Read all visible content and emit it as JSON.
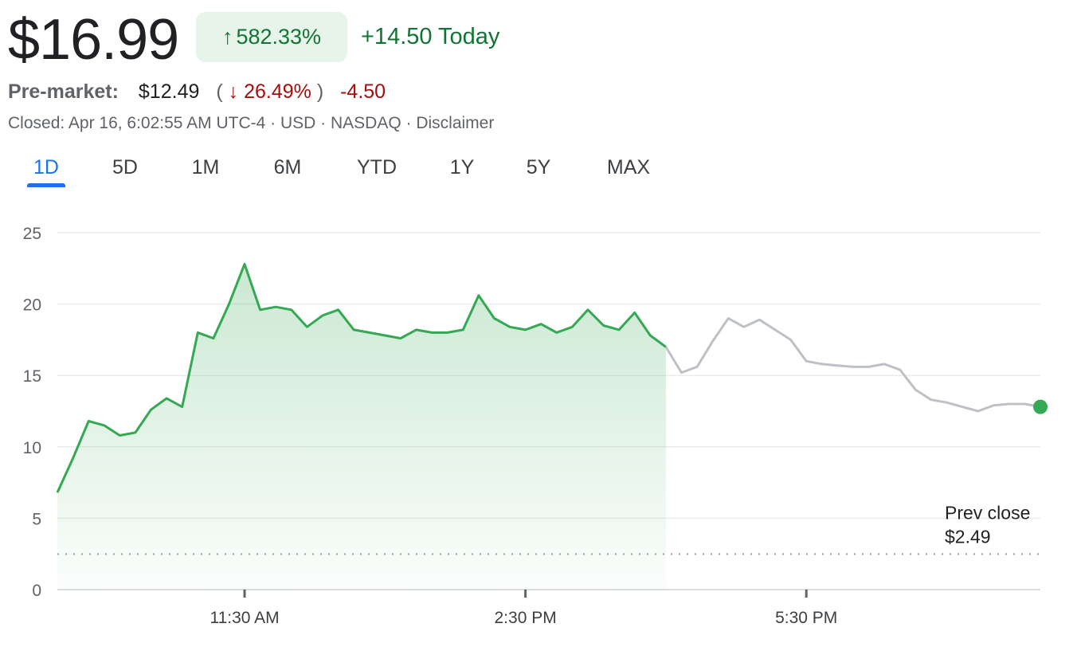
{
  "quote": {
    "price": "$16.99",
    "change_arrow": "↑",
    "change_percent": "582.33%",
    "change_today": "+14.50 Today"
  },
  "premarket": {
    "label": "Pre-market:",
    "price": "$12.49",
    "paren_open": "(",
    "arrow": "↓",
    "percent": "26.49%",
    "paren_close": ")",
    "change": "-4.50"
  },
  "meta": "Closed: Apr 16, 6:02:55 AM UTC-4 · USD · NASDAQ · Disclaimer",
  "tabs": [
    "1D",
    "5D",
    "1M",
    "6M",
    "YTD",
    "1Y",
    "5Y",
    "MAX"
  ],
  "active_tab": "1D",
  "colors": {
    "up": "#137333",
    "line_green": "#34a853",
    "line_gray": "#bdc1c6",
    "down": "#a50e0e",
    "accent": "#1a73e8"
  },
  "chart_data": {
    "type": "line",
    "ylim": [
      0,
      25
    ],
    "yticks": [
      0,
      5,
      10,
      15,
      20,
      25
    ],
    "xlim": [
      "09:30",
      "20:00"
    ],
    "xticks": [
      "11:30 AM",
      "2:30 PM",
      "5:30 PM"
    ],
    "grid": true,
    "prev_close": {
      "label": "Prev close",
      "value_label": "$2.49",
      "value": 2.49
    },
    "series": [
      {
        "session": "regular",
        "x": [
          "09:30",
          "09:40",
          "09:50",
          "10:00",
          "10:10",
          "10:20",
          "10:30",
          "10:40",
          "10:50",
          "11:00",
          "11:10",
          "11:20",
          "11:30",
          "11:40",
          "11:50",
          "12:00",
          "12:10",
          "12:20",
          "12:30",
          "12:40",
          "12:50",
          "13:00",
          "13:10",
          "13:20",
          "13:30",
          "13:40",
          "13:50",
          "14:00",
          "14:10",
          "14:20",
          "14:30",
          "14:40",
          "14:50",
          "15:00",
          "15:10",
          "15:20",
          "15:30",
          "15:40",
          "15:50",
          "16:00"
        ],
        "y": [
          6.8,
          9.2,
          11.8,
          11.5,
          10.8,
          11.0,
          12.6,
          13.4,
          12.8,
          18.0,
          17.6,
          20.0,
          22.8,
          19.6,
          19.8,
          19.6,
          18.4,
          19.2,
          19.6,
          18.2,
          18.0,
          17.8,
          17.6,
          18.2,
          18.0,
          18.0,
          18.2,
          20.6,
          19.0,
          18.4,
          18.2,
          18.6,
          18.0,
          18.4,
          19.6,
          18.5,
          18.2,
          19.4,
          17.8,
          17.0
        ]
      },
      {
        "session": "after-hours",
        "x": [
          "16:00",
          "16:10",
          "16:20",
          "16:30",
          "16:40",
          "16:50",
          "17:00",
          "17:10",
          "17:20",
          "17:30",
          "17:40",
          "17:50",
          "18:00",
          "18:10",
          "18:20",
          "18:30",
          "18:40",
          "18:50",
          "19:00",
          "19:10",
          "19:20",
          "19:30",
          "19:40",
          "19:50",
          "20:00"
        ],
        "y": [
          17.0,
          15.2,
          15.6,
          17.4,
          19.0,
          18.4,
          18.9,
          18.2,
          17.5,
          16.0,
          15.8,
          15.7,
          15.6,
          15.6,
          15.8,
          15.4,
          14.0,
          13.3,
          13.1,
          12.8,
          12.5,
          12.9,
          13.0,
          13.0,
          12.8
        ]
      }
    ]
  }
}
